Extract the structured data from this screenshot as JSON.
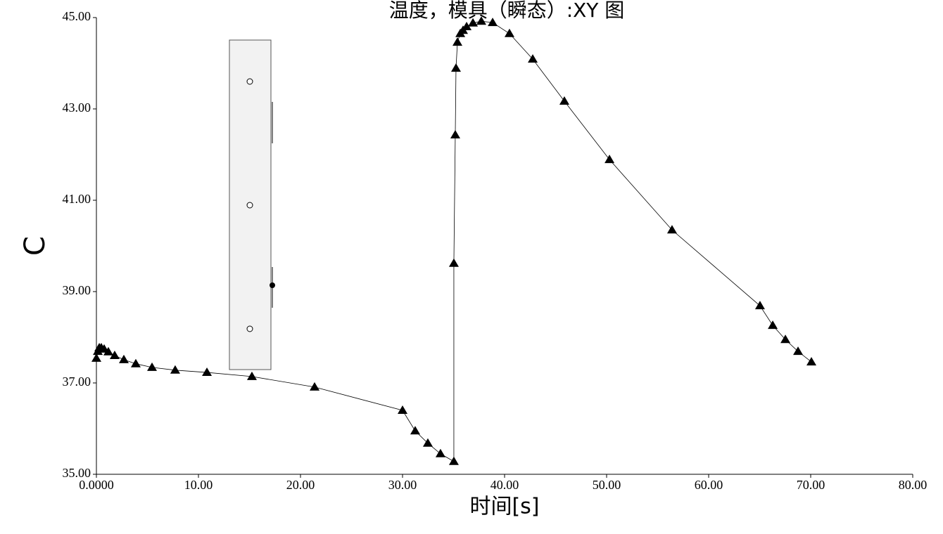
{
  "chart_data": {
    "type": "line",
    "title": "温度，模具（瞬态）:XY 图",
    "x_label": "时间[s]",
    "y_label": "C",
    "series": [
      {
        "color": "#000000",
        "x": [
          0,
          0.14,
          0.28,
          0.48,
          0.76,
          1.17,
          1.79,
          2.69,
          3.86,
          5.45,
          7.72,
          10.83,
          15.24,
          21.38,
          30.0,
          31.24,
          32.48,
          33.72,
          35.03,
          35.03,
          35.17,
          35.24,
          35.38,
          35.66,
          35.93,
          36.28,
          36.9,
          37.72,
          38.83,
          40.48,
          42.76,
          45.86,
          50.28,
          56.41,
          65.03,
          66.28,
          67.52,
          68.76,
          70.07
        ],
        "values": [
          37.54,
          37.69,
          37.77,
          37.77,
          37.74,
          37.68,
          37.6,
          37.51,
          37.42,
          37.34,
          37.28,
          37.23,
          37.14,
          36.91,
          36.4,
          35.95,
          35.68,
          35.45,
          35.28,
          39.62,
          42.43,
          43.89,
          44.46,
          44.65,
          44.72,
          44.8,
          44.88,
          44.92,
          44.89,
          44.65,
          44.09,
          43.17,
          41.89,
          40.35,
          38.69,
          38.26,
          37.95,
          37.69,
          37.46
        ]
      }
    ],
    "xlim": [
      0,
      80
    ],
    "xticks": [
      {
        "value": 0,
        "label": "0.0000"
      },
      {
        "value": 10,
        "label": "10.00"
      },
      {
        "value": 20,
        "label": "20.00"
      },
      {
        "value": 30,
        "label": "30.00"
      },
      {
        "value": 40,
        "label": "40.00"
      },
      {
        "value": 50,
        "label": "50.00"
      },
      {
        "value": 60,
        "label": "60.00"
      },
      {
        "value": 70,
        "label": "70.00"
      },
      {
        "value": 80,
        "label": "80.00"
      }
    ],
    "ylim": [
      35,
      45
    ],
    "yticks": [
      {
        "value": 35,
        "label": "35.00"
      },
      {
        "value": 37,
        "label": "37.00"
      },
      {
        "value": 39,
        "label": "39.00"
      },
      {
        "value": 41,
        "label": "41.00"
      },
      {
        "value": 43,
        "label": "43.00"
      },
      {
        "value": 45,
        "label": "45.00"
      }
    ]
  }
}
